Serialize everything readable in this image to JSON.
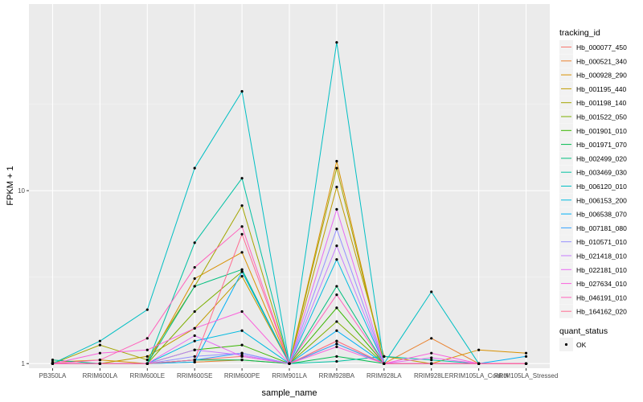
{
  "chart_data": {
    "type": "line",
    "xlabel": "sample_name",
    "ylabel": "FPKM + 1",
    "y_scale": "log10",
    "ylim": [
      0.94,
      120
    ],
    "y_ticks": [
      1,
      10
    ],
    "y_tick_labels": [
      "1",
      "10"
    ],
    "grid": true,
    "legend_placement": "right",
    "categories": [
      "PB350LA",
      "RRIM600LA",
      "RRIM600LE",
      "RRIM600SE",
      "RRIM600PE",
      "RRIM901LA",
      "RRIM928BA",
      "RRIM928LA",
      "RRIM928LE",
      "RRIM105LA_Control",
      "RRIM105LA_Stressed"
    ],
    "legend_title": "tracking_id",
    "series": [
      {
        "name": "Hb_000077_450",
        "color": "#F8766D",
        "values": [
          1,
          1,
          1,
          1.05,
          1.1,
          1,
          1.3,
          1,
          1,
          1,
          1
        ]
      },
      {
        "name": "Hb_000521_340",
        "color": "#EA8331",
        "values": [
          1,
          1,
          1,
          1.02,
          1.05,
          1,
          1.35,
          1,
          1.4,
          1,
          1
        ]
      },
      {
        "name": "Hb_000928_290",
        "color": "#D89000",
        "values": [
          1.02,
          1.05,
          1,
          3.1,
          4.4,
          1,
          14.8,
          1,
          1,
          1.2,
          1.15
        ]
      },
      {
        "name": "Hb_001195_440",
        "color": "#C09B00",
        "values": [
          1,
          1,
          1.1,
          1.6,
          3.2,
          1,
          10.5,
          1.1,
          1,
          1,
          1
        ]
      },
      {
        "name": "Hb_001198_140",
        "color": "#A3A500",
        "values": [
          1,
          1.28,
          1.05,
          2.8,
          8.2,
          1,
          13.5,
          1,
          1,
          1,
          1
        ]
      },
      {
        "name": "Hb_001522_050",
        "color": "#7CAE00",
        "values": [
          1,
          1,
          1,
          2.0,
          3.4,
          1,
          1.75,
          1,
          1,
          1,
          1
        ]
      },
      {
        "name": "Hb_001901_010",
        "color": "#39B600",
        "values": [
          1,
          1,
          1,
          1.2,
          1.28,
          1,
          2.1,
          1,
          1,
          1,
          1
        ]
      },
      {
        "name": "Hb_001971_070",
        "color": "#00BB4E",
        "values": [
          1,
          1,
          1,
          1.05,
          1.05,
          1,
          1.1,
          1,
          1,
          1,
          1
        ]
      },
      {
        "name": "Hb_002499_020",
        "color": "#00BF7D",
        "values": [
          1.05,
          1,
          1,
          2.8,
          3.5,
          1,
          2.8,
          1,
          1,
          1,
          1
        ]
      },
      {
        "name": "Hb_003469_030",
        "color": "#00C1A3",
        "values": [
          1,
          1,
          1,
          5.0,
          11.8,
          1,
          1.03,
          1.1,
          1.05,
          1,
          1
        ]
      },
      {
        "name": "Hb_006120_010",
        "color": "#00BFC4",
        "values": [
          1,
          1.35,
          2.05,
          13.5,
          37.5,
          1,
          72,
          1,
          2.6,
          1,
          1
        ]
      },
      {
        "name": "Hb_006153_200",
        "color": "#00BAE0",
        "values": [
          1,
          1,
          1,
          1.35,
          1.55,
          1,
          4.0,
          1,
          1,
          1,
          1
        ]
      },
      {
        "name": "Hb_006538_070",
        "color": "#00B0F6",
        "values": [
          1,
          1,
          1,
          1.02,
          3.4,
          1,
          1.55,
          1,
          1,
          1,
          1.1
        ]
      },
      {
        "name": "Hb_007181_080",
        "color": "#35A2FF",
        "values": [
          1,
          1,
          1,
          1.05,
          1.15,
          1,
          1.3,
          1,
          1,
          1,
          1
        ]
      },
      {
        "name": "Hb_010571_010",
        "color": "#9590FF",
        "values": [
          1,
          1,
          1,
          1.1,
          1.15,
          1,
          6.0,
          1,
          1,
          1,
          1
        ]
      },
      {
        "name": "Hb_021418_010",
        "color": "#C77CFF",
        "values": [
          1,
          1,
          1,
          1.2,
          1.12,
          1,
          4.8,
          1,
          1,
          1,
          1
        ]
      },
      {
        "name": "Hb_022181_010",
        "color": "#E76BF3",
        "values": [
          1,
          1,
          1,
          1.45,
          1.1,
          1,
          7.8,
          1,
          1.08,
          1,
          1
        ]
      },
      {
        "name": "Hb_027634_010",
        "color": "#FA62DB",
        "values": [
          1,
          1.15,
          1.2,
          1.6,
          2.0,
          1,
          1.25,
          1,
          1.15,
          1,
          1
        ]
      },
      {
        "name": "Hb_046191_010",
        "color": "#FF62BC",
        "values": [
          1,
          1.05,
          1.4,
          3.6,
          6.2,
          1,
          2.5,
          1,
          1,
          1,
          1
        ]
      },
      {
        "name": "Hb_164162_020",
        "color": "#FF6C91",
        "values": [
          1,
          1,
          1,
          1.05,
          5.6,
          1,
          1.35,
          1,
          1,
          1,
          1
        ]
      }
    ],
    "shape_legend": {
      "title": "quant_status",
      "items": [
        "OK"
      ]
    }
  }
}
